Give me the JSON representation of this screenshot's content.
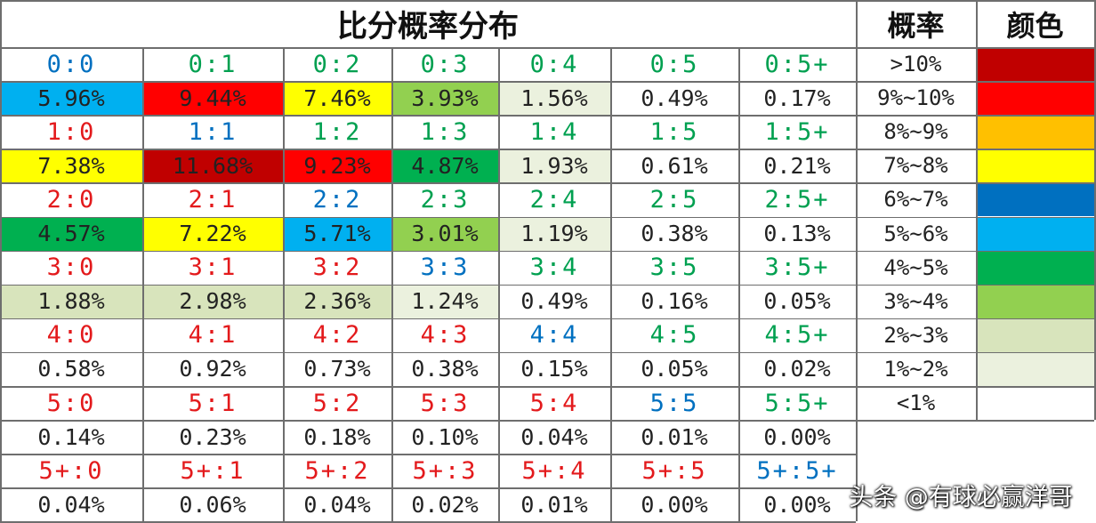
{
  "title": "比分概率分布",
  "legend": {
    "header_prob": "概率",
    "header_color": "颜色",
    "items": [
      {
        "range": ">10%",
        "color": "#c00000"
      },
      {
        "range": "9%~10%",
        "color": "#ff0000"
      },
      {
        "range": "8%~9%",
        "color": "#ffc000"
      },
      {
        "range": "7%~8%",
        "color": "#ffff00"
      },
      {
        "range": "6%~7%",
        "color": "#0070c0"
      },
      {
        "range": "5%~6%",
        "color": "#00b0f0"
      },
      {
        "range": "4%~5%",
        "color": "#00b050"
      },
      {
        "range": "3%~4%",
        "color": "#92d050"
      },
      {
        "range": "2%~3%",
        "color": "#d8e4bc"
      },
      {
        "range": "1%~2%",
        "color": "#ebf1de"
      },
      {
        "range": "<1%",
        "color": "#ffffff"
      }
    ]
  },
  "colors": {
    "home_win_text": "#e31a1c",
    "draw_text": "#0070c0",
    "away_win_text": "#00a050"
  },
  "grid": [
    [
      {
        "score": "0:0",
        "outcome": "draw",
        "pct": "5.96%",
        "bg": "#00b0f0"
      },
      {
        "score": "0:1",
        "outcome": "away",
        "pct": "9.44%",
        "bg": "#ff0000"
      },
      {
        "score": "0:2",
        "outcome": "away",
        "pct": "7.46%",
        "bg": "#ffff00"
      },
      {
        "score": "0:3",
        "outcome": "away",
        "pct": "3.93%",
        "bg": "#92d050"
      },
      {
        "score": "0:4",
        "outcome": "away",
        "pct": "1.56%",
        "bg": "#ebf1de"
      },
      {
        "score": "0:5",
        "outcome": "away",
        "pct": "0.49%",
        "bg": "#ffffff"
      },
      {
        "score": "0:5+",
        "outcome": "away",
        "pct": "0.17%",
        "bg": "#ffffff"
      }
    ],
    [
      {
        "score": "1:0",
        "outcome": "home",
        "pct": "7.38%",
        "bg": "#ffff00"
      },
      {
        "score": "1:1",
        "outcome": "draw",
        "pct": "11.68%",
        "bg": "#c00000"
      },
      {
        "score": "1:2",
        "outcome": "away",
        "pct": "9.23%",
        "bg": "#ff0000"
      },
      {
        "score": "1:3",
        "outcome": "away",
        "pct": "4.87%",
        "bg": "#00b050"
      },
      {
        "score": "1:4",
        "outcome": "away",
        "pct": "1.93%",
        "bg": "#ebf1de"
      },
      {
        "score": "1:5",
        "outcome": "away",
        "pct": "0.61%",
        "bg": "#ffffff"
      },
      {
        "score": "1:5+",
        "outcome": "away",
        "pct": "0.21%",
        "bg": "#ffffff"
      }
    ],
    [
      {
        "score": "2:0",
        "outcome": "home",
        "pct": "4.57%",
        "bg": "#00b050"
      },
      {
        "score": "2:1",
        "outcome": "home",
        "pct": "7.22%",
        "bg": "#ffff00"
      },
      {
        "score": "2:2",
        "outcome": "draw",
        "pct": "5.71%",
        "bg": "#00b0f0"
      },
      {
        "score": "2:3",
        "outcome": "away",
        "pct": "3.01%",
        "bg": "#92d050"
      },
      {
        "score": "2:4",
        "outcome": "away",
        "pct": "1.19%",
        "bg": "#ebf1de"
      },
      {
        "score": "2:5",
        "outcome": "away",
        "pct": "0.38%",
        "bg": "#ffffff"
      },
      {
        "score": "2:5+",
        "outcome": "away",
        "pct": "0.13%",
        "bg": "#ffffff"
      }
    ],
    [
      {
        "score": "3:0",
        "outcome": "home",
        "pct": "1.88%",
        "bg": "#d8e4bc"
      },
      {
        "score": "3:1",
        "outcome": "home",
        "pct": "2.98%",
        "bg": "#d8e4bc"
      },
      {
        "score": "3:2",
        "outcome": "home",
        "pct": "2.36%",
        "bg": "#d8e4bc"
      },
      {
        "score": "3:3",
        "outcome": "draw",
        "pct": "1.24%",
        "bg": "#ebf1de"
      },
      {
        "score": "3:4",
        "outcome": "away",
        "pct": "0.49%",
        "bg": "#ffffff"
      },
      {
        "score": "3:5",
        "outcome": "away",
        "pct": "0.16%",
        "bg": "#ffffff"
      },
      {
        "score": "3:5+",
        "outcome": "away",
        "pct": "0.05%",
        "bg": "#ffffff"
      }
    ],
    [
      {
        "score": "4:0",
        "outcome": "home",
        "pct": "0.58%",
        "bg": "#ffffff"
      },
      {
        "score": "4:1",
        "outcome": "home",
        "pct": "0.92%",
        "bg": "#ffffff"
      },
      {
        "score": "4:2",
        "outcome": "home",
        "pct": "0.73%",
        "bg": "#ffffff"
      },
      {
        "score": "4:3",
        "outcome": "home",
        "pct": "0.38%",
        "bg": "#ffffff"
      },
      {
        "score": "4:4",
        "outcome": "draw",
        "pct": "0.15%",
        "bg": "#ffffff"
      },
      {
        "score": "4:5",
        "outcome": "away",
        "pct": "0.05%",
        "bg": "#ffffff"
      },
      {
        "score": "4:5+",
        "outcome": "away",
        "pct": "0.02%",
        "bg": "#ffffff"
      }
    ],
    [
      {
        "score": "5:0",
        "outcome": "home",
        "pct": "0.14%",
        "bg": "#ffffff"
      },
      {
        "score": "5:1",
        "outcome": "home",
        "pct": "0.23%",
        "bg": "#ffffff"
      },
      {
        "score": "5:2",
        "outcome": "home",
        "pct": "0.18%",
        "bg": "#ffffff"
      },
      {
        "score": "5:3",
        "outcome": "home",
        "pct": "0.10%",
        "bg": "#ffffff"
      },
      {
        "score": "5:4",
        "outcome": "home",
        "pct": "0.04%",
        "bg": "#ffffff"
      },
      {
        "score": "5:5",
        "outcome": "draw",
        "pct": "0.01%",
        "bg": "#ffffff"
      },
      {
        "score": "5:5+",
        "outcome": "away",
        "pct": "0.00%",
        "bg": "#ffffff"
      }
    ],
    [
      {
        "score": "5+:0",
        "outcome": "home",
        "pct": "0.04%",
        "bg": "#ffffff"
      },
      {
        "score": "5+:1",
        "outcome": "home",
        "pct": "0.06%",
        "bg": "#ffffff"
      },
      {
        "score": "5+:2",
        "outcome": "home",
        "pct": "0.04%",
        "bg": "#ffffff"
      },
      {
        "score": "5+:3",
        "outcome": "home",
        "pct": "0.02%",
        "bg": "#ffffff"
      },
      {
        "score": "5+:4",
        "outcome": "home",
        "pct": "0.01%",
        "bg": "#ffffff"
      },
      {
        "score": "5+:5",
        "outcome": "home",
        "pct": "0.00%",
        "bg": "#ffffff"
      },
      {
        "score": "5+:5+",
        "outcome": "draw",
        "pct": "0.00%",
        "bg": "#ffffff"
      }
    ]
  ],
  "watermark": "头条 @有球必赢洋哥"
}
